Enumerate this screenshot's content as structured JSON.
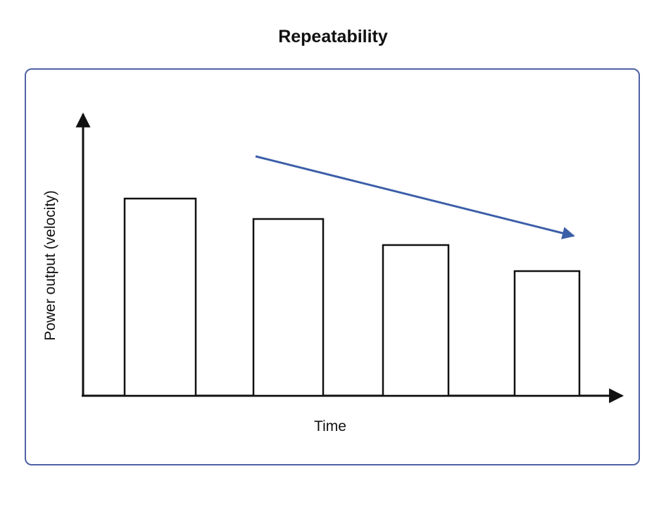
{
  "chart_data": {
    "type": "bar",
    "title": "Repeatability",
    "xlabel": "Time",
    "ylabel": "Power output (velocity)",
    "categories": [
      "",
      "",
      "",
      ""
    ],
    "values": [
      280,
      251,
      214,
      177
    ],
    "ylim": [
      0,
      400
    ],
    "grid": false,
    "legend": "none",
    "trend_arrow": "decreasing",
    "colors": {
      "bar_fill": "#ffffff",
      "bar_stroke": "#111111",
      "axis": "#111111",
      "trend_arrow": "#3b5ea8",
      "panel_border": "#4f62a6"
    }
  }
}
